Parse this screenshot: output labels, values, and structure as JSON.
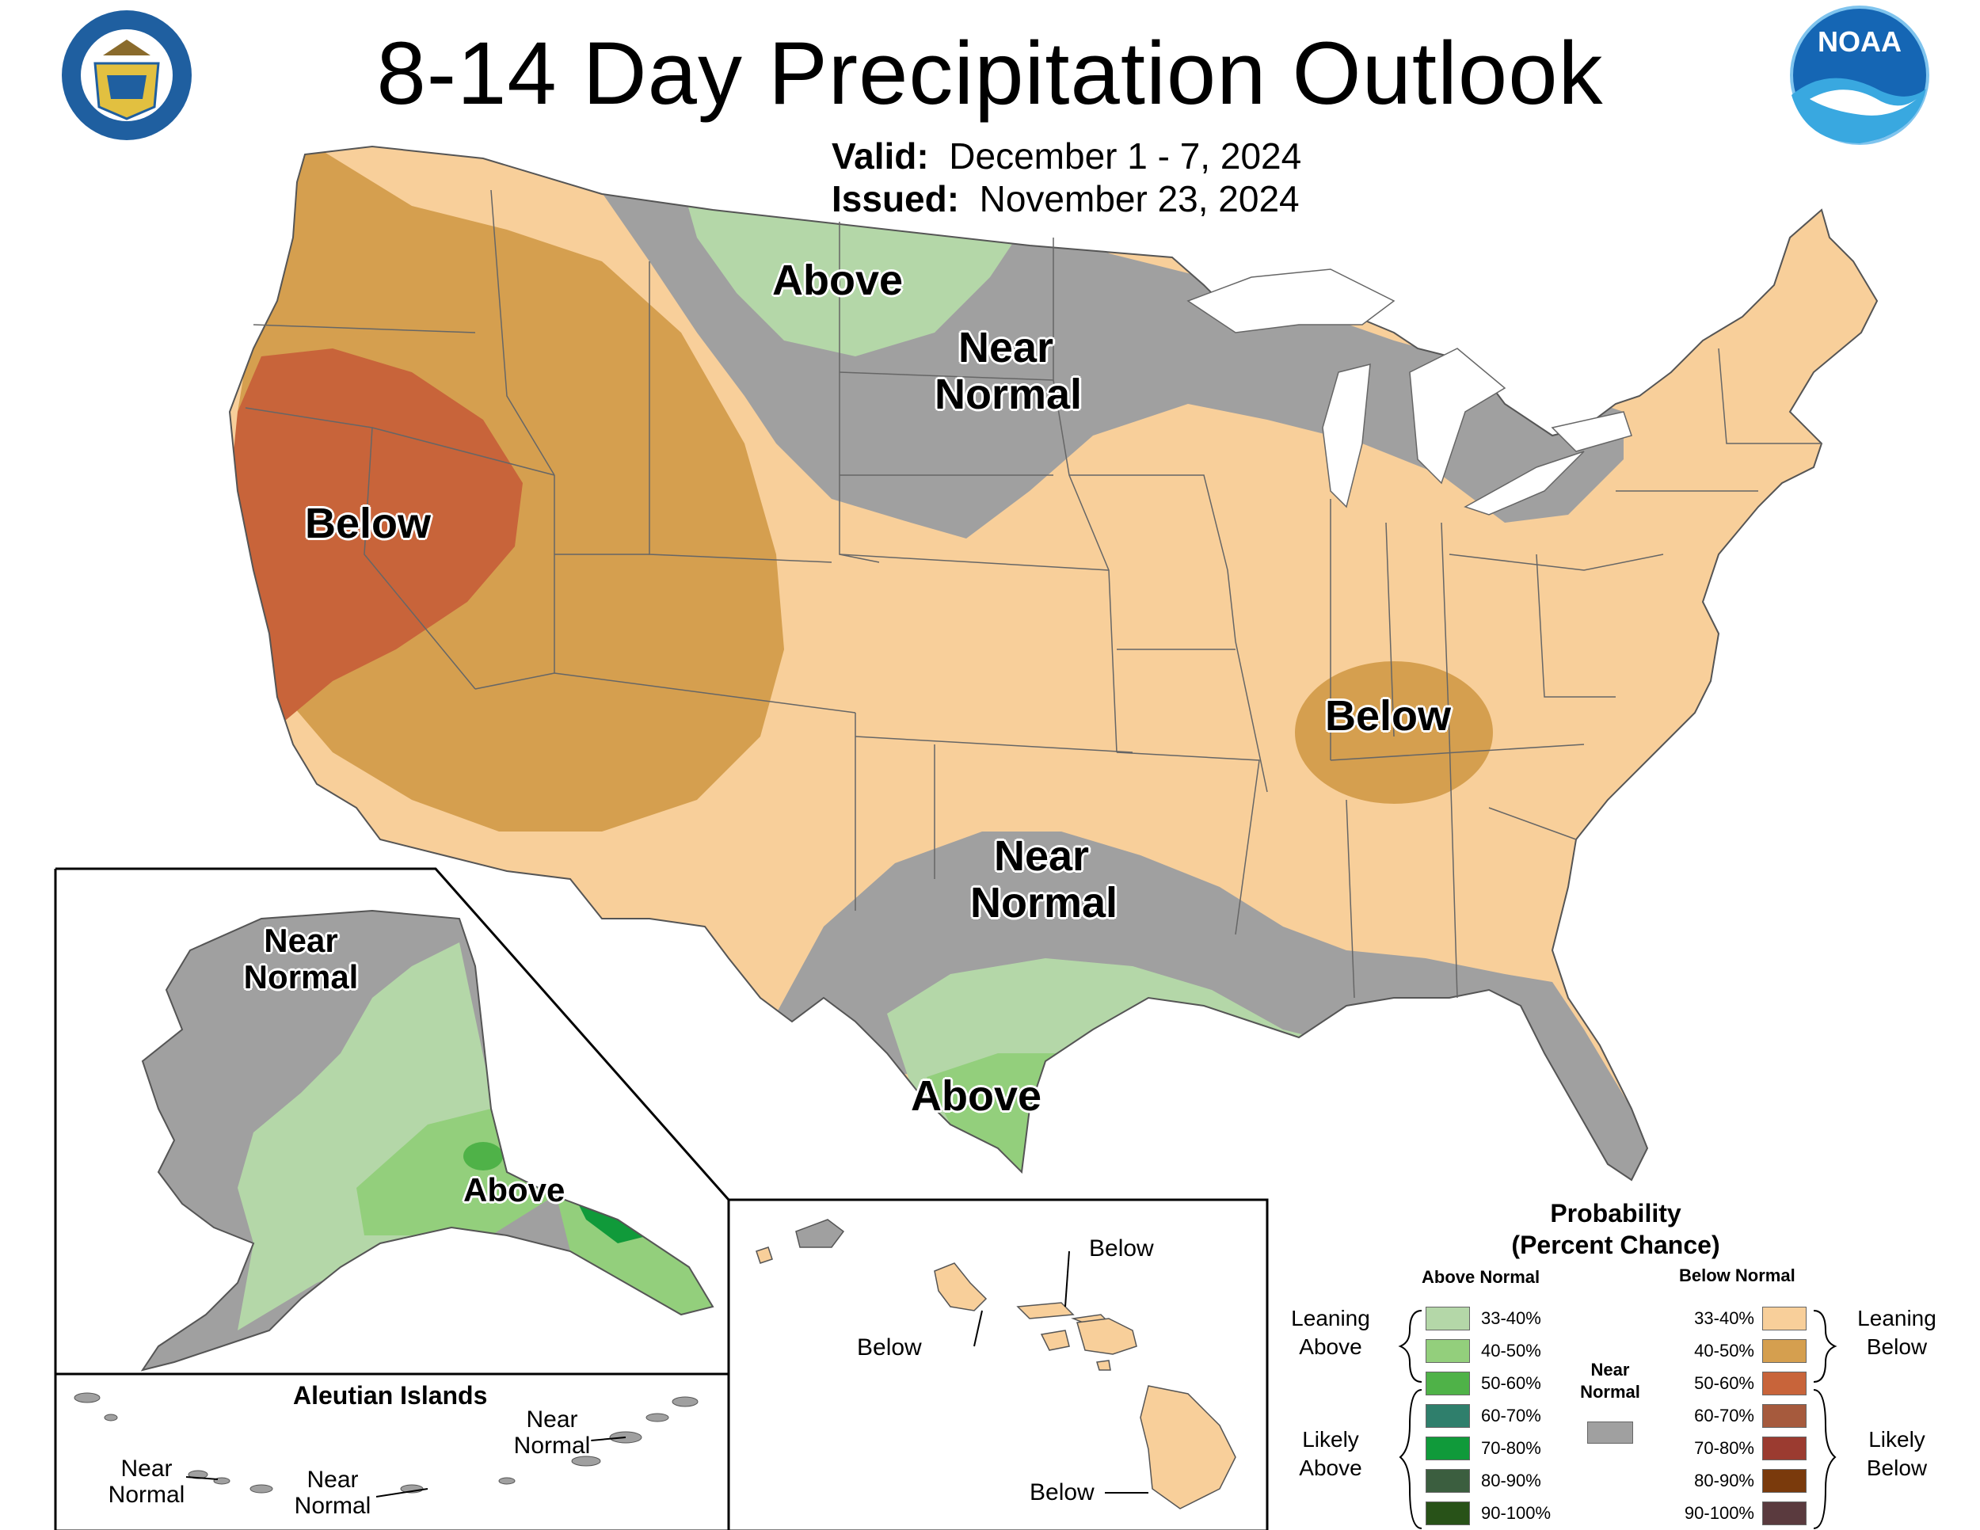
{
  "header": {
    "title": "8-14 Day Precipitation Outlook",
    "valid_label": "Valid:",
    "valid_value": "December 1 - 7, 2024",
    "issued_label": "Issued:",
    "issued_value": "November 23, 2024"
  },
  "logos": {
    "left": "department-of-commerce-seal",
    "right": "noaa-logo",
    "noaa_text": "NOAA"
  },
  "map_labels": {
    "west_below": "Below",
    "north_above": "Above",
    "north_near_1": "Near",
    "north_near_2": "Normal",
    "tn_below": "Below",
    "south_near_1": "Near",
    "south_near_2": "Normal",
    "texas_above": "Above",
    "ak_near_1": "Near",
    "ak_near_2": "Normal",
    "ak_above": "Above",
    "aleutian_title": "Aleutian Islands",
    "aleut_near_a1": "Near",
    "aleut_near_a2": "Normal",
    "aleut_near_b1": "Near",
    "aleut_near_b2": "Normal",
    "aleut_near_c1": "Near",
    "aleut_near_c2": "Normal",
    "hi_below_1": "Below",
    "hi_below_2": "Below",
    "hi_below_3": "Below"
  },
  "legend": {
    "title_1": "Probability",
    "title_2": "(Percent Chance)",
    "above_head": "Above Normal",
    "below_head": "Below Normal",
    "near_1": "Near",
    "near_2": "Normal",
    "near_color": "#a0a0a0",
    "leaning_above_1": "Leaning",
    "leaning_above_2": "Above",
    "likely_above_1": "Likely",
    "likely_above_2": "Above",
    "leaning_below_1": "Leaning",
    "leaning_below_2": "Below",
    "likely_below_1": "Likely",
    "likely_below_2": "Below",
    "above": [
      {
        "label": "33-40%",
        "color": "#b4d7a8"
      },
      {
        "label": "40-50%",
        "color": "#93cf7c"
      },
      {
        "label": "50-60%",
        "color": "#4fb248"
      },
      {
        "label": "60-70%",
        "color": "#2f7f6c"
      },
      {
        "label": "70-80%",
        "color": "#109a3a"
      },
      {
        "label": "80-90%",
        "color": "#3b5e3f"
      },
      {
        "label": "90-100%",
        "color": "#285218"
      }
    ],
    "below": [
      {
        "label": "33-40%",
        "color": "#f8cf9a"
      },
      {
        "label": "40-50%",
        "color": "#d59f4f"
      },
      {
        "label": "50-60%",
        "color": "#c8643a"
      },
      {
        "label": "60-70%",
        "color": "#a65a3d"
      },
      {
        "label": "70-80%",
        "color": "#9b3b30"
      },
      {
        "label": "80-90%",
        "color": "#7a3a0c"
      },
      {
        "label": "90-100%",
        "color": "#5a3a3e"
      }
    ]
  },
  "colors": {
    "leaning_below": "#f8cf9a",
    "below_40_50": "#d59f4f",
    "below_50_60": "#c8643a",
    "near_normal": "#a0a0a0",
    "above_33_40": "#b4d7a8",
    "above_40_50": "#93cf7c",
    "above_50_60": "#4fb248",
    "above_70_80": "#109a3a"
  }
}
